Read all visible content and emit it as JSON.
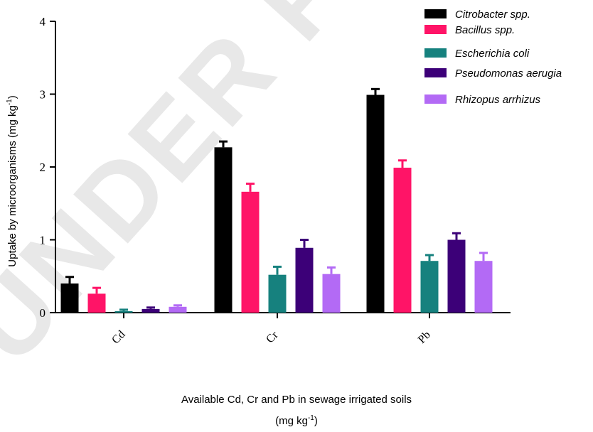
{
  "chart_data": {
    "type": "bar",
    "title": "",
    "categories": [
      "Cd",
      "Cr",
      "Pb"
    ],
    "series": [
      {
        "name": "Citrobacter spp.",
        "color": "#000000",
        "values": [
          0.4,
          2.27,
          2.99
        ],
        "errors": [
          0.09,
          0.08,
          0.08
        ]
      },
      {
        "name": "Bacillus spp.",
        "color": "#ff1467",
        "values": [
          0.26,
          1.66,
          1.99
        ],
        "errors": [
          0.08,
          0.11,
          0.1
        ]
      },
      {
        "name": "Escherichia coli",
        "color": "#16817e",
        "values": [
          0.02,
          0.52,
          0.71
        ],
        "errors": [
          0.02,
          0.11,
          0.08
        ]
      },
      {
        "name": "Pseudomonas aerugia",
        "color": "#3c0078",
        "values": [
          0.05,
          0.89,
          1.0
        ],
        "errors": [
          0.02,
          0.11,
          0.09
        ]
      },
      {
        "name": "Rhizopus arrhizus",
        "color": "#b36af5",
        "values": [
          0.08,
          0.53,
          0.71
        ],
        "errors": [
          0.02,
          0.09,
          0.11
        ]
      }
    ],
    "ylim": [
      0,
      4
    ],
    "yticks": [
      "0",
      "1",
      "2",
      "3",
      "4"
    ],
    "ylabel": {
      "main": "Uptake by microorganisms (mg kg",
      "sup": "-1",
      "end": ")"
    },
    "xlabel": {
      "line1": "Available Cd, Cr and Pb in sewage irrigated soils",
      "line2_main": "(mg kg",
      "line2_sup": "-1",
      "line2_end": ")"
    },
    "legend_position": "top-right",
    "grid": false,
    "error_bars": "upper",
    "watermark": "UNDER PEER"
  }
}
